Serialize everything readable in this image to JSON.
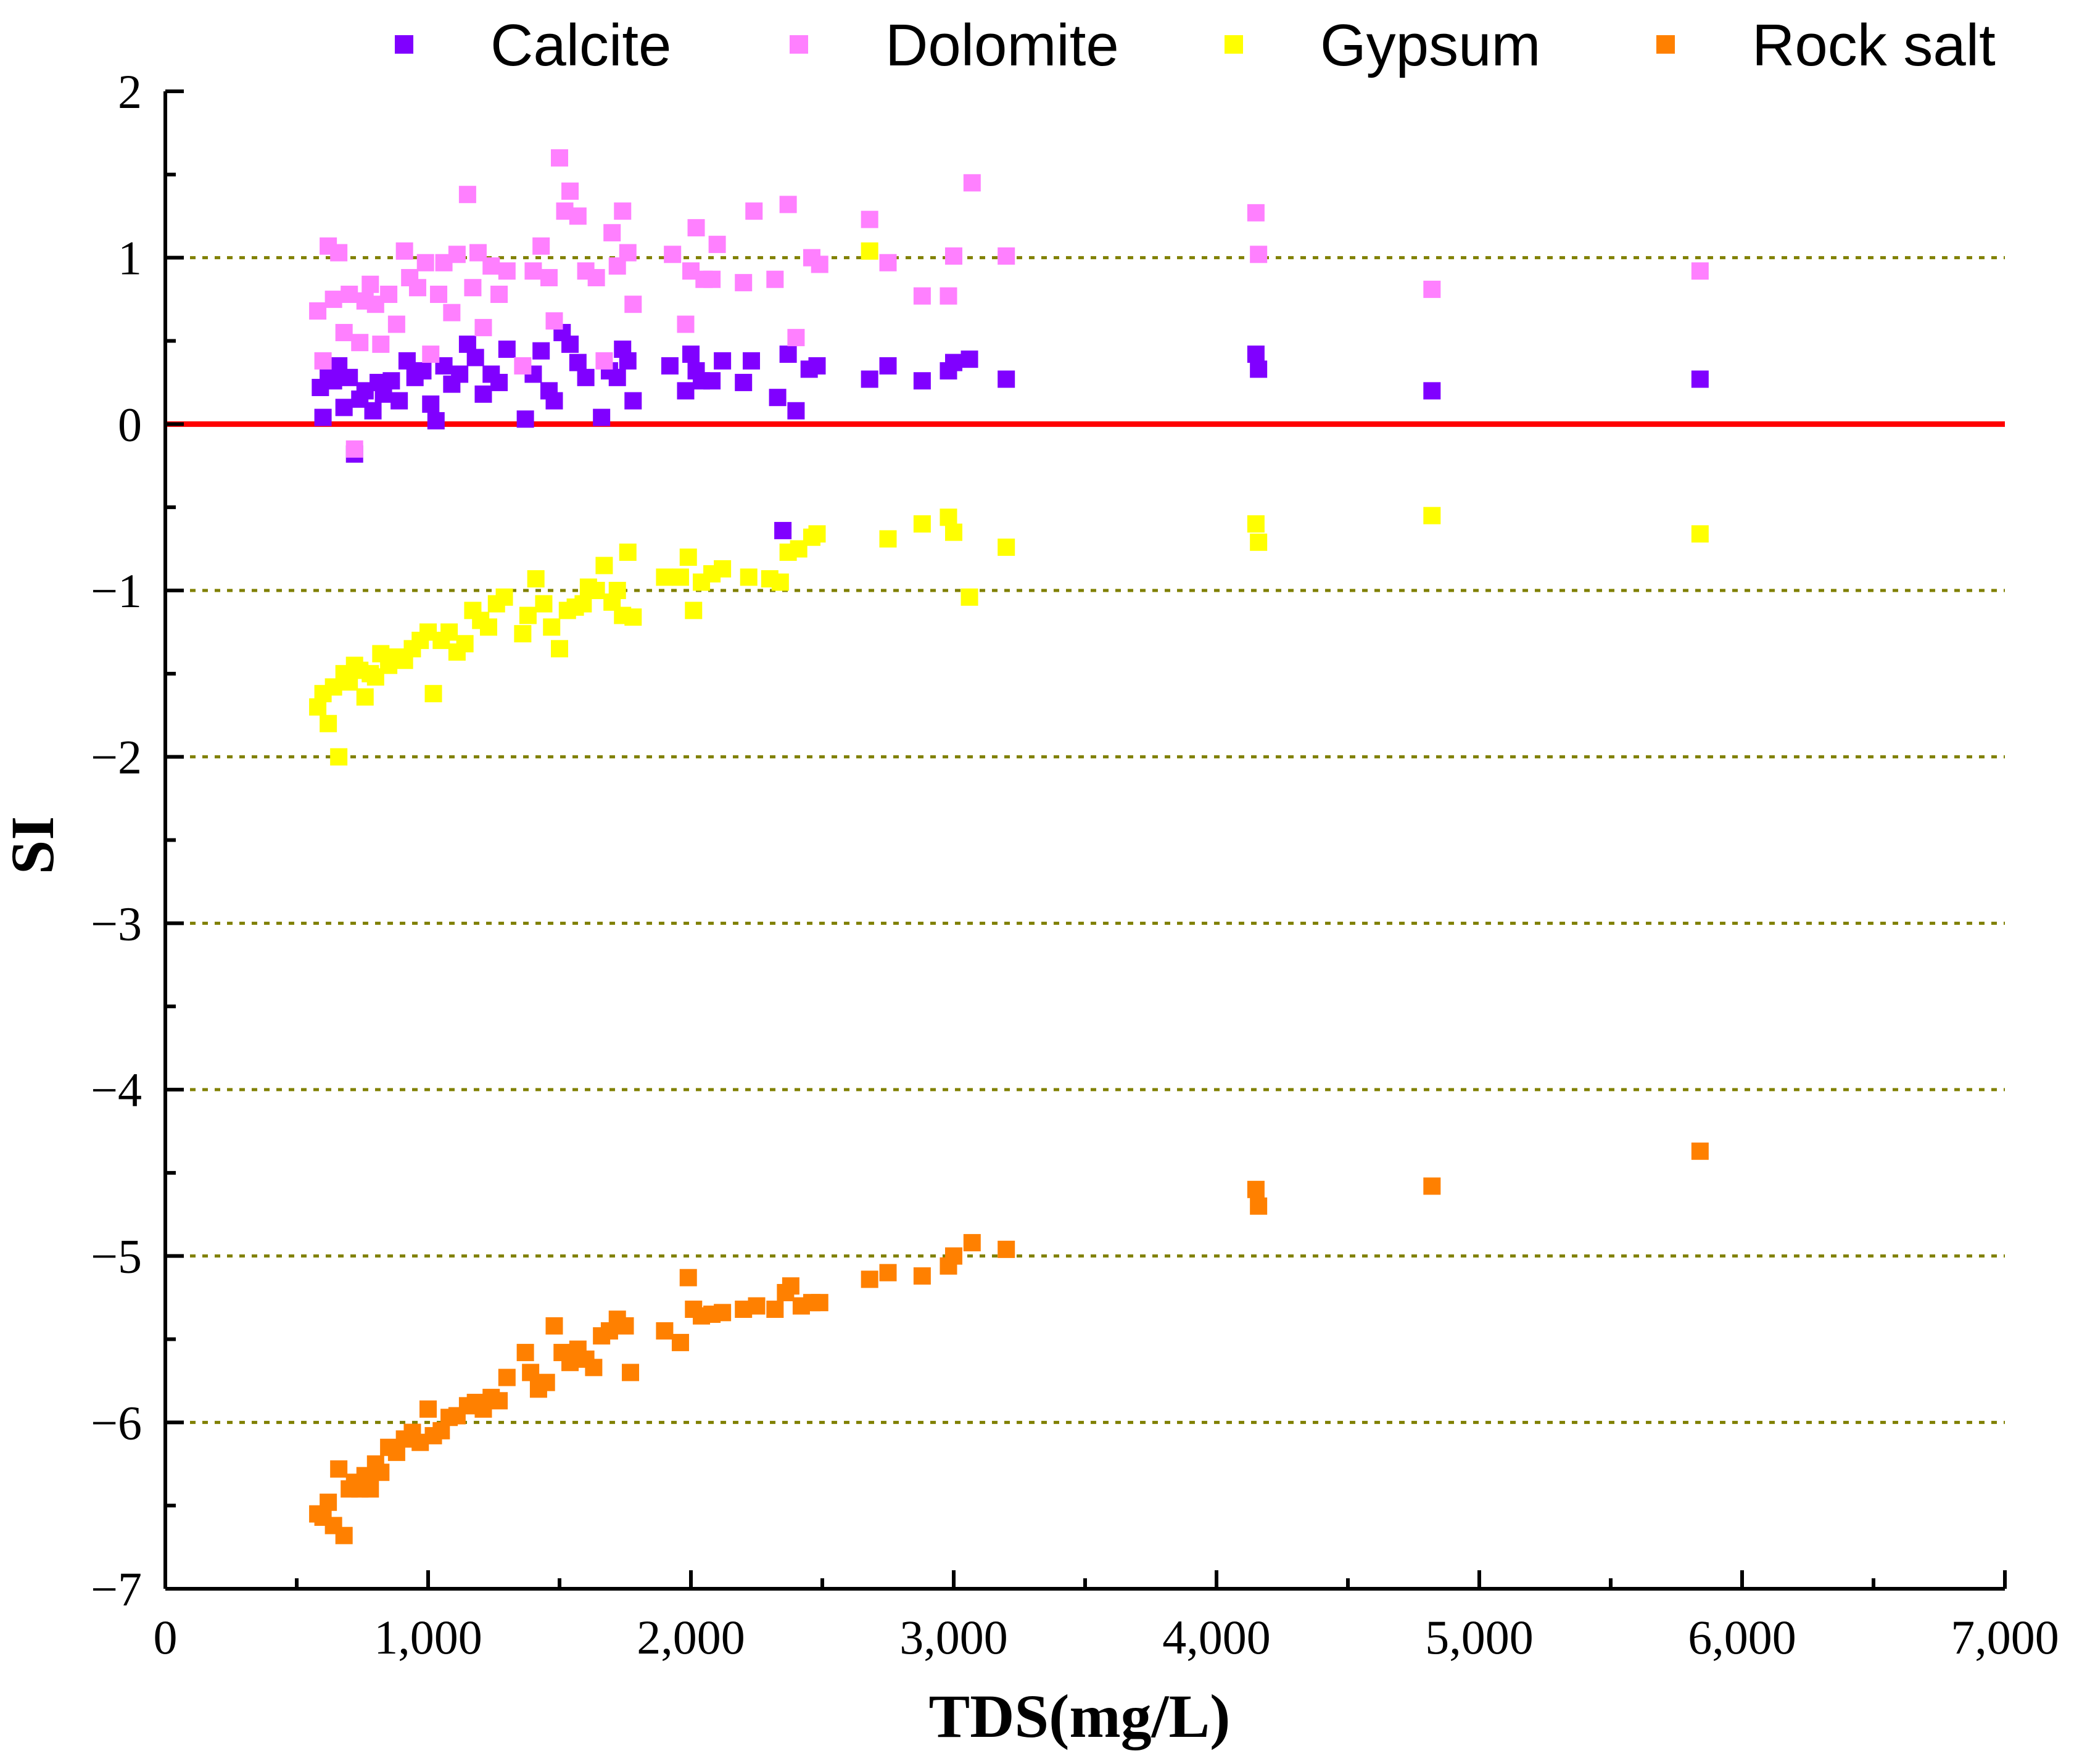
{
  "chart_data": {
    "type": "scatter",
    "title": "",
    "xlabel": "TDS(mg/L)",
    "ylabel": "SI",
    "xlim": [
      0,
      7000
    ],
    "ylim": [
      -7,
      2
    ],
    "x_ticks": [
      0,
      1000,
      2000,
      3000,
      4000,
      5000,
      6000,
      7000
    ],
    "x_tick_labels": [
      "0",
      "1,000",
      "2,000",
      "3,000",
      "4,000",
      "5,000",
      "6,000",
      "7,000"
    ],
    "y_ticks": [
      2,
      1,
      0,
      -1,
      -2,
      -3,
      -4,
      -5,
      -6,
      -7
    ],
    "y_tick_labels": [
      "2",
      "1",
      "0",
      "−1",
      "−2",
      "−3",
      "−4",
      "−5",
      "−6",
      "−7"
    ],
    "gridlines_y": [
      1,
      -1,
      -2,
      -3,
      -4,
      -5,
      -6
    ],
    "grid_color": "#808000",
    "reference_line": {
      "y": 0,
      "color": "#ff0000"
    },
    "legend_position": "top",
    "series": [
      {
        "name": "Calcite",
        "color": "#8000ff",
        "points": [
          [
            590,
            0.22
          ],
          [
            600,
            0.04
          ],
          [
            620,
            0.3
          ],
          [
            640,
            0.26
          ],
          [
            660,
            0.35
          ],
          [
            680,
            0.1
          ],
          [
            700,
            0.28
          ],
          [
            720,
            -0.18
          ],
          [
            740,
            0.15
          ],
          [
            760,
            0.2
          ],
          [
            790,
            0.08
          ],
          [
            810,
            0.25
          ],
          [
            830,
            0.18
          ],
          [
            860,
            0.26
          ],
          [
            890,
            0.14
          ],
          [
            920,
            0.38
          ],
          [
            950,
            0.28
          ],
          [
            980,
            0.32
          ],
          [
            1010,
            0.12
          ],
          [
            1030,
            0.02
          ],
          [
            1060,
            0.35
          ],
          [
            1090,
            0.24
          ],
          [
            1120,
            0.3
          ],
          [
            1150,
            0.48
          ],
          [
            1180,
            0.4
          ],
          [
            1210,
            0.18
          ],
          [
            1240,
            0.3
          ],
          [
            1270,
            0.25
          ],
          [
            1300,
            0.45
          ],
          [
            1370,
            0.03
          ],
          [
            1400,
            0.3
          ],
          [
            1430,
            0.44
          ],
          [
            1460,
            0.2
          ],
          [
            1480,
            0.14
          ],
          [
            1510,
            0.55
          ],
          [
            1540,
            0.48
          ],
          [
            1570,
            0.37
          ],
          [
            1600,
            0.28
          ],
          [
            1660,
            0.04
          ],
          [
            1690,
            0.32
          ],
          [
            1720,
            0.28
          ],
          [
            1740,
            0.45
          ],
          [
            1760,
            0.38
          ],
          [
            1780,
            0.14
          ],
          [
            1920,
            0.35
          ],
          [
            1980,
            0.2
          ],
          [
            2000,
            0.42
          ],
          [
            2020,
            0.32
          ],
          [
            2040,
            0.26
          ],
          [
            2080,
            0.26
          ],
          [
            2120,
            0.38
          ],
          [
            2200,
            0.25
          ],
          [
            2230,
            0.38
          ],
          [
            2330,
            0.16
          ],
          [
            2350,
            -0.64
          ],
          [
            2370,
            0.42
          ],
          [
            2400,
            0.08
          ],
          [
            2450,
            0.33
          ],
          [
            2480,
            0.35
          ],
          [
            2680,
            0.27
          ],
          [
            2750,
            0.35
          ],
          [
            2880,
            0.26
          ],
          [
            2980,
            0.32
          ],
          [
            3000,
            0.37
          ],
          [
            3060,
            0.39
          ],
          [
            3200,
            0.27
          ],
          [
            4150,
            0.42
          ],
          [
            4160,
            0.33
          ],
          [
            4820,
            0.2
          ],
          [
            5840,
            0.27
          ]
        ]
      },
      {
        "name": "Dolomite",
        "color": "#ff80ff",
        "points": [
          [
            580,
            0.68
          ],
          [
            600,
            0.38
          ],
          [
            620,
            1.07
          ],
          [
            640,
            0.75
          ],
          [
            660,
            1.03
          ],
          [
            680,
            0.55
          ],
          [
            700,
            0.78
          ],
          [
            720,
            -0.15
          ],
          [
            740,
            0.49
          ],
          [
            760,
            0.74
          ],
          [
            780,
            0.84
          ],
          [
            800,
            0.72
          ],
          [
            820,
            0.48
          ],
          [
            850,
            0.78
          ],
          [
            880,
            0.6
          ],
          [
            910,
            1.04
          ],
          [
            930,
            0.88
          ],
          [
            960,
            0.82
          ],
          [
            990,
            0.97
          ],
          [
            1010,
            0.42
          ],
          [
            1040,
            0.78
          ],
          [
            1060,
            0.97
          ],
          [
            1090,
            0.67
          ],
          [
            1110,
            1.02
          ],
          [
            1150,
            1.38
          ],
          [
            1170,
            0.82
          ],
          [
            1190,
            1.03
          ],
          [
            1210,
            0.58
          ],
          [
            1240,
            0.95
          ],
          [
            1270,
            0.78
          ],
          [
            1300,
            0.92
          ],
          [
            1360,
            0.35
          ],
          [
            1400,
            0.92
          ],
          [
            1430,
            1.07
          ],
          [
            1460,
            0.88
          ],
          [
            1480,
            0.62
          ],
          [
            1500,
            1.6
          ],
          [
            1520,
            1.28
          ],
          [
            1540,
            1.4
          ],
          [
            1570,
            1.25
          ],
          [
            1600,
            0.92
          ],
          [
            1640,
            0.88
          ],
          [
            1670,
            0.38
          ],
          [
            1700,
            1.15
          ],
          [
            1720,
            0.95
          ],
          [
            1740,
            1.28
          ],
          [
            1760,
            1.03
          ],
          [
            1780,
            0.72
          ],
          [
            1930,
            1.02
          ],
          [
            1980,
            0.6
          ],
          [
            2000,
            0.92
          ],
          [
            2020,
            1.18
          ],
          [
            2050,
            0.87
          ],
          [
            2080,
            0.87
          ],
          [
            2100,
            1.08
          ],
          [
            2200,
            0.85
          ],
          [
            2240,
            1.28
          ],
          [
            2320,
            0.87
          ],
          [
            2370,
            1.32
          ],
          [
            2400,
            0.52
          ],
          [
            2460,
            1.0
          ],
          [
            2490,
            0.96
          ],
          [
            2680,
            1.23
          ],
          [
            2750,
            0.97
          ],
          [
            2880,
            0.77
          ],
          [
            2980,
            0.77
          ],
          [
            3000,
            1.01
          ],
          [
            3070,
            1.45
          ],
          [
            3200,
            1.01
          ],
          [
            4150,
            1.27
          ],
          [
            4160,
            1.02
          ],
          [
            4820,
            0.81
          ],
          [
            5840,
            0.92
          ]
        ]
      },
      {
        "name": "Gypsum",
        "color": "#ffff00",
        "points": [
          [
            580,
            -1.7
          ],
          [
            600,
            -1.62
          ],
          [
            620,
            -1.8
          ],
          [
            640,
            -1.58
          ],
          [
            660,
            -2.0
          ],
          [
            680,
            -1.5
          ],
          [
            700,
            -1.55
          ],
          [
            720,
            -1.45
          ],
          [
            740,
            -1.48
          ],
          [
            760,
            -1.64
          ],
          [
            780,
            -1.5
          ],
          [
            800,
            -1.52
          ],
          [
            820,
            -1.38
          ],
          [
            850,
            -1.45
          ],
          [
            880,
            -1.4
          ],
          [
            910,
            -1.42
          ],
          [
            940,
            -1.35
          ],
          [
            970,
            -1.3
          ],
          [
            1000,
            -1.25
          ],
          [
            1020,
            -1.62
          ],
          [
            1050,
            -1.3
          ],
          [
            1080,
            -1.25
          ],
          [
            1110,
            -1.37
          ],
          [
            1140,
            -1.32
          ],
          [
            1170,
            -1.12
          ],
          [
            1200,
            -1.18
          ],
          [
            1230,
            -1.22
          ],
          [
            1260,
            -1.08
          ],
          [
            1290,
            -1.04
          ],
          [
            1360,
            -1.26
          ],
          [
            1380,
            -1.15
          ],
          [
            1410,
            -0.93
          ],
          [
            1440,
            -1.08
          ],
          [
            1470,
            -1.22
          ],
          [
            1500,
            -1.35
          ],
          [
            1530,
            -1.12
          ],
          [
            1560,
            -1.1
          ],
          [
            1590,
            -1.08
          ],
          [
            1610,
            -0.98
          ],
          [
            1640,
            -1.0
          ],
          [
            1670,
            -0.85
          ],
          [
            1700,
            -1.07
          ],
          [
            1720,
            -1.0
          ],
          [
            1740,
            -1.15
          ],
          [
            1760,
            -0.77
          ],
          [
            1780,
            -1.16
          ],
          [
            1900,
            -0.92
          ],
          [
            1960,
            -0.92
          ],
          [
            1990,
            -0.8
          ],
          [
            2010,
            -1.12
          ],
          [
            2040,
            -0.95
          ],
          [
            2080,
            -0.9
          ],
          [
            2120,
            -0.87
          ],
          [
            2220,
            -0.92
          ],
          [
            2300,
            -0.93
          ],
          [
            2340,
            -0.95
          ],
          [
            2370,
            -0.77
          ],
          [
            2410,
            -0.75
          ],
          [
            2460,
            -0.68
          ],
          [
            2480,
            -0.66
          ],
          [
            2680,
            1.04
          ],
          [
            2750,
            -0.69
          ],
          [
            2880,
            -0.6
          ],
          [
            2980,
            -0.56
          ],
          [
            3000,
            -0.65
          ],
          [
            3060,
            -1.04
          ],
          [
            3200,
            -0.74
          ],
          [
            4150,
            -0.6
          ],
          [
            4160,
            -0.71
          ],
          [
            4820,
            -0.55
          ],
          [
            5840,
            -0.66
          ]
        ]
      },
      {
        "name": "Rock salt",
        "color": "#ff8000",
        "points": [
          [
            580,
            -6.55
          ],
          [
            600,
            -6.57
          ],
          [
            620,
            -6.48
          ],
          [
            640,
            -6.62
          ],
          [
            660,
            -6.28
          ],
          [
            680,
            -6.68
          ],
          [
            700,
            -6.4
          ],
          [
            720,
            -6.36
          ],
          [
            740,
            -6.4
          ],
          [
            760,
            -6.32
          ],
          [
            780,
            -6.4
          ],
          [
            800,
            -6.25
          ],
          [
            820,
            -6.3
          ],
          [
            850,
            -6.15
          ],
          [
            880,
            -6.18
          ],
          [
            910,
            -6.1
          ],
          [
            940,
            -6.06
          ],
          [
            970,
            -6.12
          ],
          [
            1000,
            -5.92
          ],
          [
            1020,
            -6.08
          ],
          [
            1050,
            -6.05
          ],
          [
            1080,
            -5.97
          ],
          [
            1110,
            -5.96
          ],
          [
            1150,
            -5.9
          ],
          [
            1180,
            -5.88
          ],
          [
            1210,
            -5.92
          ],
          [
            1240,
            -5.85
          ],
          [
            1270,
            -5.87
          ],
          [
            1300,
            -5.73
          ],
          [
            1370,
            -5.58
          ],
          [
            1390,
            -5.7
          ],
          [
            1420,
            -5.8
          ],
          [
            1450,
            -5.76
          ],
          [
            1480,
            -5.42
          ],
          [
            1510,
            -5.58
          ],
          [
            1540,
            -5.64
          ],
          [
            1570,
            -5.56
          ],
          [
            1600,
            -5.62
          ],
          [
            1630,
            -5.67
          ],
          [
            1660,
            -5.48
          ],
          [
            1690,
            -5.45
          ],
          [
            1720,
            -5.38
          ],
          [
            1750,
            -5.42
          ],
          [
            1770,
            -5.7
          ],
          [
            1900,
            -5.45
          ],
          [
            1960,
            -5.52
          ],
          [
            1990,
            -5.13
          ],
          [
            2010,
            -5.32
          ],
          [
            2040,
            -5.36
          ],
          [
            2080,
            -5.35
          ],
          [
            2120,
            -5.34
          ],
          [
            2200,
            -5.32
          ],
          [
            2250,
            -5.3
          ],
          [
            2320,
            -5.32
          ],
          [
            2360,
            -5.22
          ],
          [
            2380,
            -5.18
          ],
          [
            2420,
            -5.3
          ],
          [
            2460,
            -5.28
          ],
          [
            2490,
            -5.28
          ],
          [
            2680,
            -5.14
          ],
          [
            2750,
            -5.1
          ],
          [
            2880,
            -5.12
          ],
          [
            2980,
            -5.06
          ],
          [
            3000,
            -5.0
          ],
          [
            3070,
            -4.92
          ],
          [
            3200,
            -4.96
          ],
          [
            4150,
            -4.6
          ],
          [
            4160,
            -4.7
          ],
          [
            4820,
            -4.58
          ],
          [
            5840,
            -4.37
          ]
        ]
      }
    ]
  }
}
